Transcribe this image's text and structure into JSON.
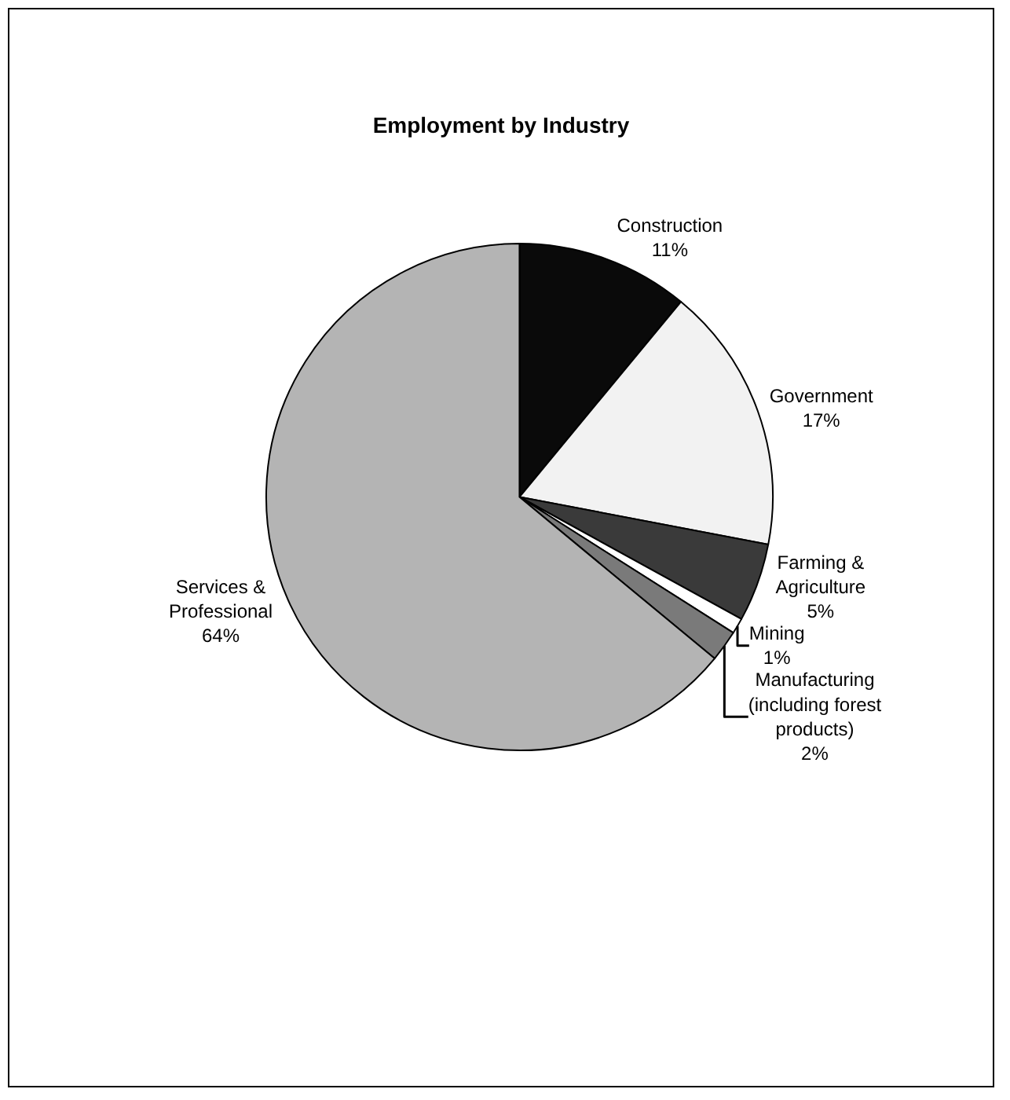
{
  "chart_data": {
    "type": "pie",
    "title": "Employment by Industry",
    "categories": [
      "Construction",
      "Government",
      "Farming &\nAgriculture",
      "Mining",
      "Manufacturing\n(including forest\nproducts)",
      "Services &\nProfessional"
    ],
    "values": [
      11,
      17,
      5,
      1,
      2,
      64
    ],
    "value_labels": [
      "11%",
      "17%",
      "5%",
      "1%",
      "2%",
      "64%"
    ],
    "colors": [
      "#0a0a0a",
      "#f2f2f2",
      "#3a3a3a",
      "#ffffff",
      "#7a7a7a",
      "#b4b4b4"
    ],
    "legend": false
  }
}
